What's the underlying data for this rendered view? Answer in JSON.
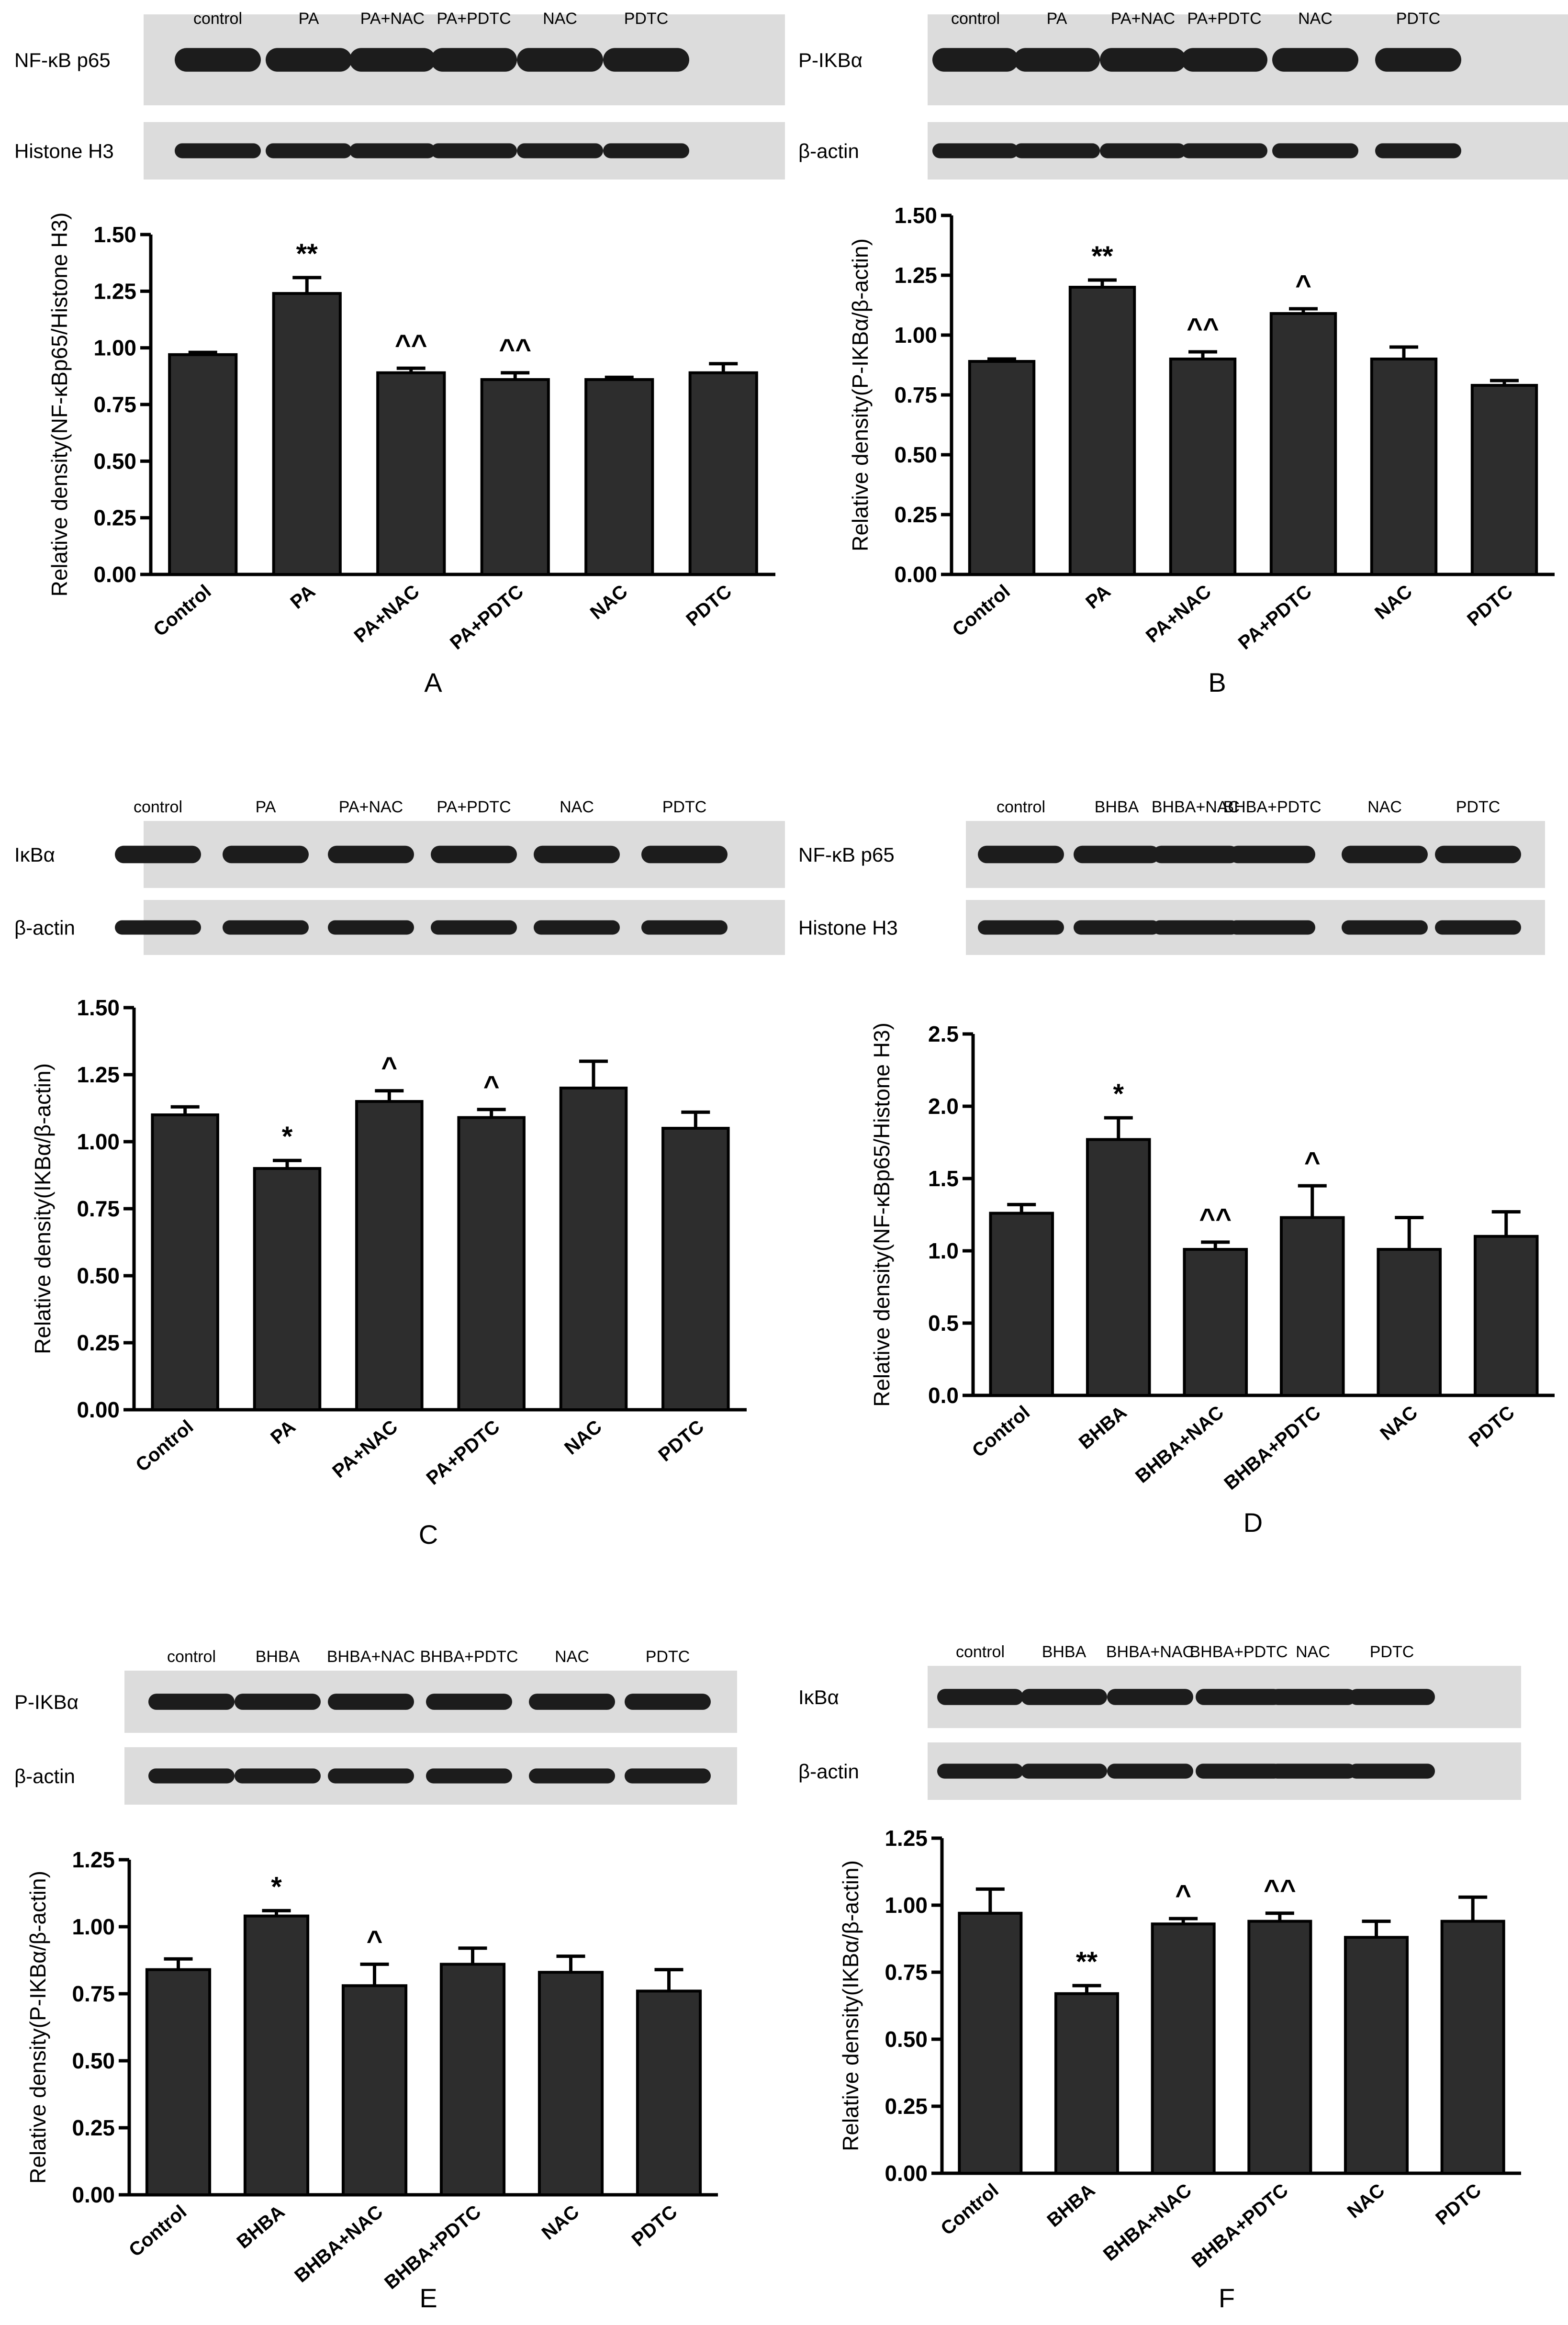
{
  "colors": {
    "bar": "#2d2d2d",
    "blot_bg": "#dcdcdc",
    "band": "#1c1c1c",
    "axis": "#000000",
    "text": "#000000"
  },
  "panels": [
    {
      "letter": "A",
      "lanes": [
        "control",
        "PA",
        "PA+NAC",
        "PA+PDTC",
        "NAC",
        "PDTC"
      ],
      "blots": [
        "NF-κB p65",
        "Histone H3"
      ]
    },
    {
      "letter": "B",
      "lanes": [
        "control",
        "PA",
        "PA+NAC",
        "PA+PDTC",
        "NAC",
        "PDTC"
      ],
      "blots": [
        "P-IKBα",
        "β-actin"
      ]
    },
    {
      "letter": "C",
      "lanes": [
        "control",
        "PA",
        "PA+NAC",
        "PA+PDTC",
        "NAC",
        "PDTC"
      ],
      "blots": [
        "IκBα",
        "β-actin"
      ]
    },
    {
      "letter": "D",
      "lanes": [
        "control",
        "BHBA",
        "BHBA+NAC",
        "BHBA+PDTC",
        "NAC",
        "PDTC"
      ],
      "blots": [
        "NF-κB p65",
        "Histone H3"
      ]
    },
    {
      "letter": "E",
      "lanes": [
        "control",
        "BHBA",
        "BHBA+NAC",
        "BHBA+PDTC",
        "NAC",
        "PDTC"
      ],
      "blots": [
        "P-IKBα",
        "β-actin"
      ]
    },
    {
      "letter": "F",
      "lanes": [
        "control",
        "BHBA",
        "BHBA+NAC",
        "BHBA+PDTC",
        "NAC",
        "PDTC"
      ],
      "blots": [
        "IκBα",
        "β-actin"
      ]
    }
  ],
  "chart_data": [
    {
      "panel": "A",
      "type": "bar",
      "categories": [
        "Control",
        "PA",
        "PA+NAC",
        "PA+PDTC",
        "NAC",
        "PDTC"
      ],
      "values": [
        0.97,
        1.24,
        0.89,
        0.86,
        0.86,
        0.89
      ],
      "errors": [
        0.01,
        0.07,
        0.02,
        0.03,
        0.01,
        0.04
      ],
      "annotations": [
        "",
        "**",
        "^^",
        "^^",
        "",
        ""
      ],
      "ylabel": "Relative density(NF-κBp65/Histone H3)",
      "ylim": [
        0,
        1.5
      ],
      "yticks": [
        "0.00",
        "0.25",
        "0.50",
        "0.75",
        "1.00",
        "1.25",
        "1.50"
      ]
    },
    {
      "panel": "B",
      "type": "bar",
      "categories": [
        "Control",
        "PA",
        "PA+NAC",
        "PA+PDTC",
        "NAC",
        "PDTC"
      ],
      "values": [
        0.89,
        1.2,
        0.9,
        1.09,
        0.9,
        0.79
      ],
      "errors": [
        0.01,
        0.03,
        0.03,
        0.02,
        0.05,
        0.02
      ],
      "annotations": [
        "",
        "**",
        "^^",
        "^",
        "",
        ""
      ],
      "ylabel": "Relative density(P-IKBα/β-actin)",
      "ylim": [
        0,
        1.5
      ],
      "yticks": [
        "0.00",
        "0.25",
        "0.50",
        "0.75",
        "1.00",
        "1.25",
        "1.50"
      ]
    },
    {
      "panel": "C",
      "type": "bar",
      "categories": [
        "Control",
        "PA",
        "PA+NAC",
        "PA+PDTC",
        "NAC",
        "PDTC"
      ],
      "values": [
        1.1,
        0.9,
        1.15,
        1.09,
        1.2,
        1.05
      ],
      "errors": [
        0.03,
        0.03,
        0.04,
        0.03,
        0.1,
        0.06
      ],
      "annotations": [
        "",
        "*",
        "^",
        "^",
        "",
        ""
      ],
      "ylabel": "Relative density(IKBα/β-actin)",
      "ylim": [
        0,
        1.5
      ],
      "yticks": [
        "0.00",
        "0.25",
        "0.50",
        "0.75",
        "1.00",
        "1.25",
        "1.50"
      ]
    },
    {
      "panel": "D",
      "type": "bar",
      "categories": [
        "Control",
        "BHBA",
        "BHBA+NAC",
        "BHBA+PDTC",
        "NAC",
        "PDTC"
      ],
      "values": [
        1.26,
        1.77,
        1.01,
        1.23,
        1.01,
        1.1
      ],
      "errors": [
        0.06,
        0.15,
        0.05,
        0.22,
        0.22,
        0.17
      ],
      "annotations": [
        "",
        "*",
        "^^",
        "^",
        "",
        ""
      ],
      "ylabel": "Relative density(NF-κBp65/Histone H3)",
      "ylim": [
        0,
        2.5
      ],
      "yticks": [
        "0.0",
        "0.5",
        "1.0",
        "1.5",
        "2.0",
        "2.5"
      ]
    },
    {
      "panel": "E",
      "type": "bar",
      "categories": [
        "Control",
        "BHBA",
        "BHBA+NAC",
        "BHBA+PDTC",
        "NAC",
        "PDTC"
      ],
      "values": [
        0.84,
        1.04,
        0.78,
        0.86,
        0.83,
        0.76
      ],
      "errors": [
        0.04,
        0.02,
        0.08,
        0.06,
        0.06,
        0.08
      ],
      "annotations": [
        "",
        "*",
        "^",
        "",
        "",
        ""
      ],
      "ylabel": "Relative density(P-IKBα/β-actin)",
      "ylim": [
        0,
        1.25
      ],
      "yticks": [
        "0.00",
        "0.25",
        "0.50",
        "0.75",
        "1.00",
        "1.25"
      ]
    },
    {
      "panel": "F",
      "type": "bar",
      "categories": [
        "Control",
        "BHBA",
        "BHBA+NAC",
        "BHBA+PDTC",
        "NAC",
        "PDTC"
      ],
      "values": [
        0.97,
        0.67,
        0.93,
        0.94,
        0.88,
        0.94
      ],
      "errors": [
        0.09,
        0.03,
        0.02,
        0.03,
        0.06,
        0.09
      ],
      "annotations": [
        "",
        "**",
        "^",
        "^^",
        "",
        ""
      ],
      "ylabel": "Relative density(IKBα/β-actin)",
      "ylim": [
        0,
        1.25
      ],
      "yticks": [
        "0.00",
        "0.25",
        "0.50",
        "0.75",
        "1.00",
        "1.25"
      ]
    }
  ]
}
